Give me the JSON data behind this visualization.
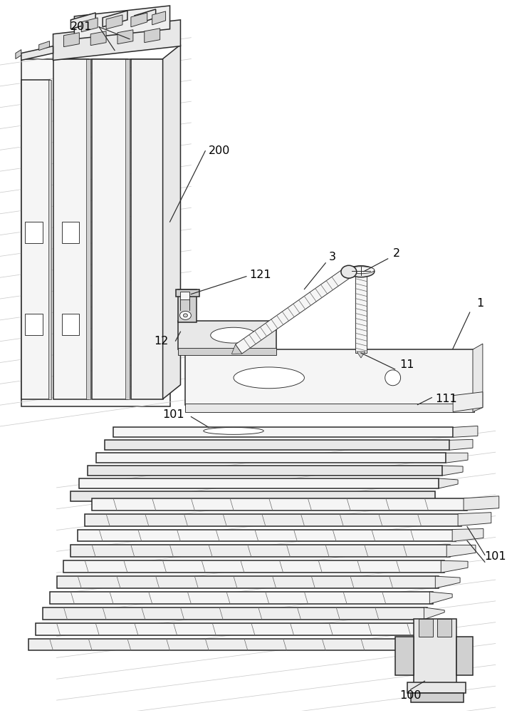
{
  "bg_color": "#ffffff",
  "lc": "#2a2a2a",
  "lc_light": "#666666",
  "lc_thin": "#999999",
  "fc_light": "#f5f5f5",
  "fc_mid": "#e8e8e8",
  "fc_dark": "#d0d0d0",
  "fc_darkest": "#b8b8b8",
  "figsize": [
    7.12,
    10.0
  ],
  "dpi": 100,
  "lw_main": 1.1,
  "lw_thin": 0.65,
  "lw_label": 0.85
}
